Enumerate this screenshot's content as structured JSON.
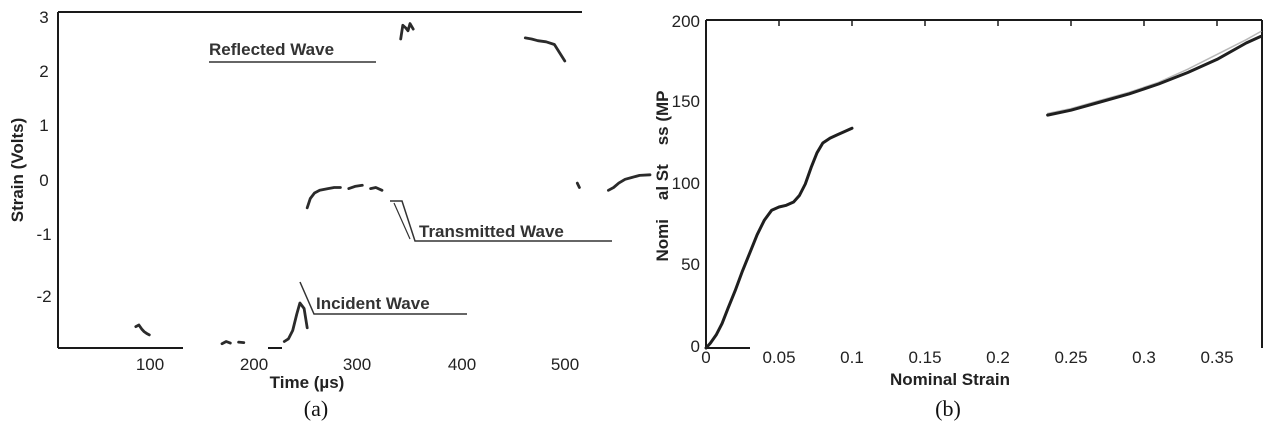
{
  "chart_data": [
    {
      "type": "line",
      "caption": "(a)",
      "xlabel": "Time (µs)",
      "ylabel": "Strain (Volts)",
      "xlim": [
        0,
        580
      ],
      "ylim": [
        -3,
        3
      ],
      "x_ticks": [
        "100",
        "200",
        "300",
        "400",
        "500"
      ],
      "y_ticks": [
        "3",
        "2",
        "1",
        "0",
        "-1",
        "-2"
      ],
      "annotations": [
        "Reflected Wave",
        "Transmitted Wave",
        "Incident Wave"
      ],
      "series": [
        {
          "segments": [
            [
              [
                85,
                -2.63
              ],
              [
                88,
                -2.6
              ],
              [
                91,
                -2.68
              ],
              [
                93,
                -2.72
              ],
              [
                96,
                -2.76
              ],
              [
                98,
                -2.78
              ]
            ],
            [
              [
                168,
                -2.94
              ],
              [
                172,
                -2.9
              ],
              [
                176,
                -2.93
              ]
            ],
            [
              [
                184,
                -2.91
              ],
              [
                189,
                -2.92
              ]
            ],
            [
              [
                228,
                -2.9
              ],
              [
                232,
                -2.85
              ],
              [
                236,
                -2.7
              ],
              [
                240,
                -2.4
              ],
              [
                243,
                -2.2
              ],
              [
                247,
                -2.3
              ],
              [
                250,
                -2.65
              ]
            ],
            [
              [
                250,
                -0.47
              ],
              [
                253,
                -0.3
              ],
              [
                257,
                -0.2
              ],
              [
                262,
                -0.15
              ],
              [
                270,
                -0.12
              ],
              [
                276,
                -0.1
              ],
              [
                282,
                -0.1
              ]
            ],
            [
              [
                290,
                -0.12
              ],
              [
                296,
                -0.08
              ],
              [
                303,
                -0.06
              ]
            ],
            [
              [
                311,
                -0.12
              ],
              [
                316,
                -0.1
              ],
              [
                322,
                -0.15
              ]
            ],
            [
              [
                340,
                2.6
              ],
              [
                342,
                2.85
              ],
              [
                345,
                2.8
              ],
              [
                347,
                2.75
              ],
              [
                349,
                2.88
              ],
              [
                352,
                2.78
              ]
            ],
            [
              [
                460,
                2.62
              ],
              [
                466,
                2.6
              ],
              [
                472,
                2.57
              ],
              [
                480,
                2.55
              ],
              [
                488,
                2.5
              ],
              [
                493,
                2.35
              ],
              [
                498,
                2.2
              ]
            ],
            [
              [
                510,
                -0.02
              ],
              [
                512,
                -0.1
              ]
            ],
            [
              [
                540,
                -0.15
              ],
              [
                545,
                -0.1
              ],
              [
                550,
                -0.02
              ],
              [
                556,
                0.05
              ],
              [
                562,
                0.08
              ],
              [
                570,
                0.12
              ],
              [
                580,
                0.13
              ]
            ]
          ]
        }
      ]
    },
    {
      "type": "line",
      "caption": "(b)",
      "xlabel": "Nominal Strain",
      "ylabel": "Nomi    al St    ss (MP",
      "xlim": [
        0,
        0.38
      ],
      "ylim": [
        0,
        200
      ],
      "x_ticks": [
        "0",
        "0.05",
        "0.1",
        "0.15",
        "0.2",
        "0.25",
        "0.3",
        "0.35"
      ],
      "y_ticks": [
        "200",
        "150",
        "100",
        "50",
        "0"
      ],
      "series": [
        {
          "segments": [
            [
              [
                0,
                0
              ],
              [
                0.003,
                3
              ],
              [
                0.007,
                8
              ],
              [
                0.011,
                15
              ],
              [
                0.015,
                24
              ],
              [
                0.02,
                35
              ],
              [
                0.025,
                47
              ],
              [
                0.03,
                58
              ],
              [
                0.035,
                69
              ],
              [
                0.04,
                78
              ],
              [
                0.045,
                84
              ],
              [
                0.05,
                86
              ],
              [
                0.055,
                87
              ],
              [
                0.06,
                89
              ],
              [
                0.064,
                93
              ],
              [
                0.068,
                100
              ],
              [
                0.072,
                110
              ],
              [
                0.076,
                119
              ],
              [
                0.08,
                125
              ],
              [
                0.085,
                128
              ],
              [
                0.09,
                130
              ],
              [
                0.095,
                132
              ],
              [
                0.1,
                134
              ]
            ],
            [
              [
                0.234,
                142
              ],
              [
                0.25,
                145
              ],
              [
                0.27,
                150
              ],
              [
                0.29,
                155
              ],
              [
                0.31,
                161
              ],
              [
                0.33,
                168
              ],
              [
                0.35,
                176
              ],
              [
                0.37,
                186
              ],
              [
                0.38,
                190
              ]
            ]
          ]
        },
        {
          "segments": [
            [
              [
                0.234,
                143
              ],
              [
                0.25,
                146
              ],
              [
                0.27,
                151
              ],
              [
                0.29,
                156
              ],
              [
                0.31,
                162
              ],
              [
                0.33,
                170
              ],
              [
                0.35,
                179
              ],
              [
                0.37,
                188
              ],
              [
                0.38,
                193
              ]
            ]
          ]
        }
      ]
    }
  ]
}
